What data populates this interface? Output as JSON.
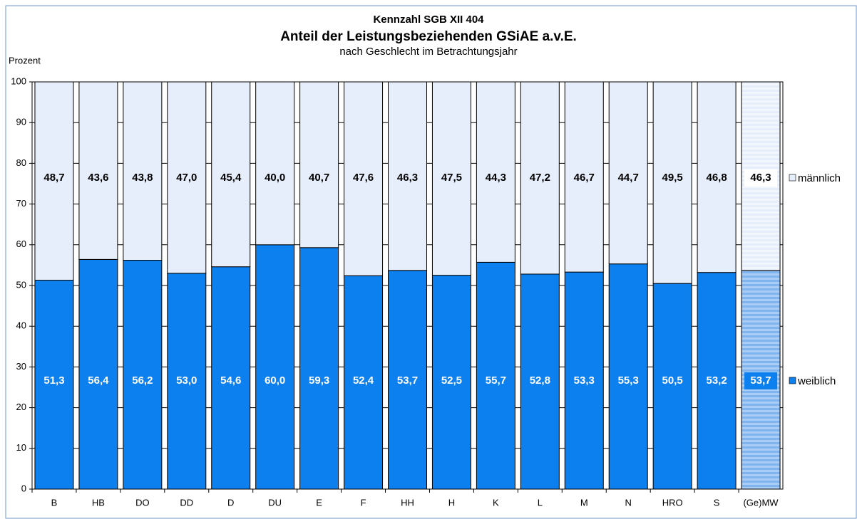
{
  "chart_data": {
    "type": "stacked-bar",
    "title": "Kennzahl SGB XII 404",
    "subtitle": "Anteil der Leistungsbeziehenden GSiAE a.v.E.",
    "subtitle2": "nach Geschlecht im Betrachtungsjahr",
    "ylabel": "Prozent",
    "categories": [
      "B",
      "HB",
      "DO",
      "DD",
      "D",
      "DU",
      "E",
      "F",
      "HH",
      "H",
      "K",
      "L",
      "M",
      "N",
      "HRO",
      "S",
      "(Ge)MW"
    ],
    "series": [
      {
        "name": "weiblich",
        "color": "#0d80ef",
        "values": [
          51.3,
          56.4,
          56.2,
          53.0,
          54.6,
          60.0,
          59.3,
          52.4,
          53.7,
          52.5,
          55.7,
          52.8,
          53.3,
          55.3,
          50.5,
          53.2,
          53.7
        ],
        "value_labels": [
          "51,3",
          "56,4",
          "56,2",
          "53,0",
          "54,6",
          "60,0",
          "59,3",
          "52,4",
          "53,7",
          "52,5",
          "55,7",
          "52,8",
          "53,3",
          "55,3",
          "50,5",
          "53,2",
          "53,7"
        ]
      },
      {
        "name": "männlich",
        "color": "#e6eefb",
        "values": [
          48.7,
          43.6,
          43.8,
          47.0,
          45.4,
          40.0,
          40.7,
          47.6,
          46.3,
          47.5,
          44.3,
          47.2,
          46.7,
          44.7,
          49.5,
          46.8,
          46.3
        ],
        "value_labels": [
          "48,7",
          "43,6",
          "43,8",
          "47,0",
          "45,4",
          "40,0",
          "40,7",
          "47,6",
          "46,3",
          "47,5",
          "44,3",
          "47,2",
          "46,7",
          "44,7",
          "49,5",
          "46,8",
          "46,3"
        ]
      }
    ],
    "ylim": [
      0,
      100
    ],
    "yticks": [
      0,
      10,
      20,
      30,
      40,
      50,
      60,
      70,
      80,
      90,
      100
    ],
    "grid": true
  }
}
